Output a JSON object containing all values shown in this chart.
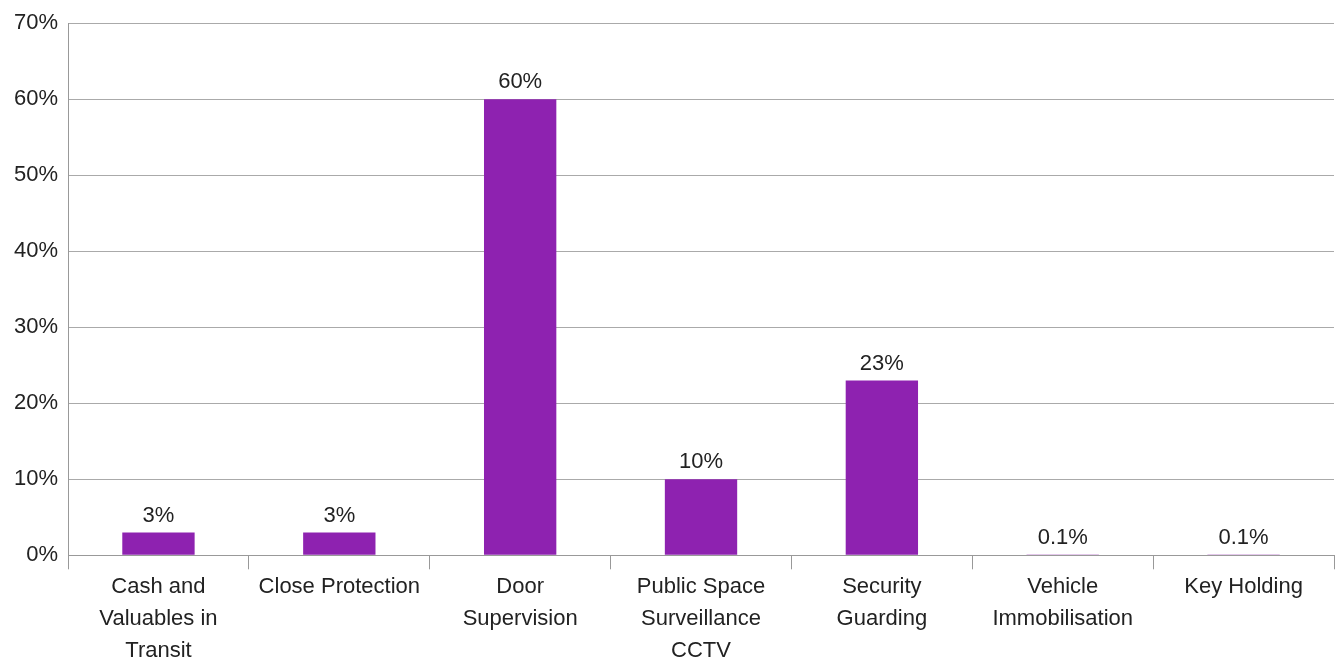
{
  "chart_data": {
    "type": "bar",
    "categories": [
      "Cash and Valuables in Transit",
      "Close Protection",
      "Door Supervision",
      "Public Space Surveillance CCTV",
      "Security Guarding",
      "Vehicle Immobilisation",
      "Key Holding"
    ],
    "values": [
      3,
      3,
      60,
      10,
      23,
      0.1,
      0.1
    ],
    "value_labels": [
      "3%",
      "3%",
      "60%",
      "10%",
      "23%",
      "0.1%",
      "0.1%"
    ],
    "color": "#8e22b0",
    "ylim": [
      0,
      70
    ],
    "yticks": [
      {
        "value": 0,
        "label": "0%"
      },
      {
        "value": 10,
        "label": "10%"
      },
      {
        "value": 20,
        "label": "20%"
      },
      {
        "value": 30,
        "label": "30%"
      },
      {
        "value": 40,
        "label": "40%"
      },
      {
        "value": 50,
        "label": "50%"
      },
      {
        "value": 60,
        "label": "60%"
      },
      {
        "value": 70,
        "label": "70%"
      }
    ],
    "grid": "y",
    "legend": false
  }
}
